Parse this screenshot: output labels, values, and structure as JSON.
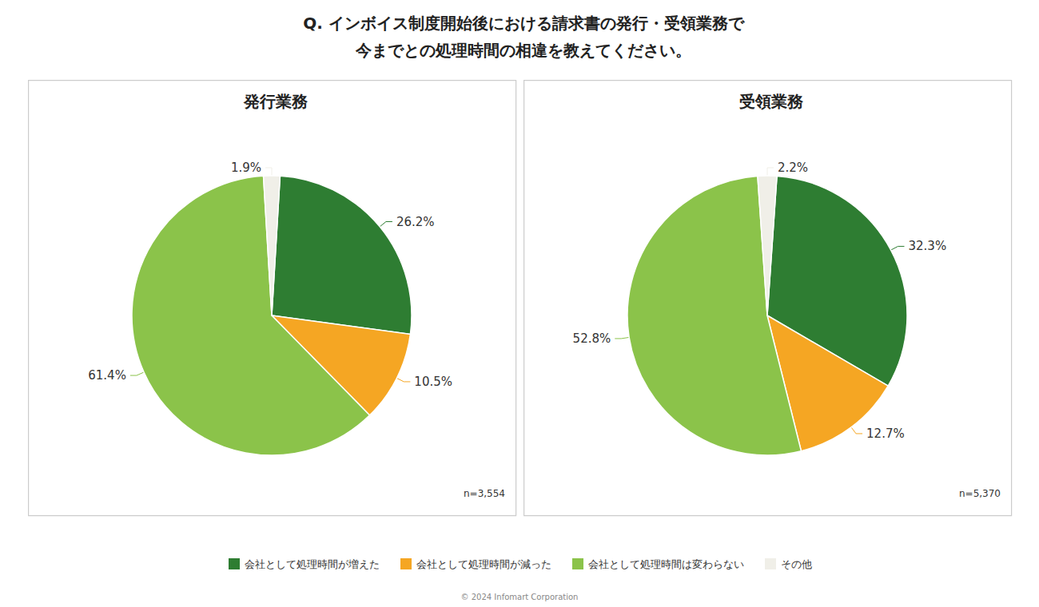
{
  "title": "Q. インボイス制度開始後における請求書の発行・受領業務で",
  "subtitle": "今までとの処理時間の相違を教えてください。",
  "annotations": [
    "© 2024 Infomart Corporation"
  ],
  "chart_data": [
    {
      "type": "pie",
      "title": "発行業務",
      "categories": [
        "会社として処理時間が増えた",
        "会社として処理時間が減った",
        "会社として処理時間は変わらない",
        "その他"
      ],
      "values": [
        26.2,
        10.5,
        61.4,
        1.9
      ],
      "value_labels": [
        "26.2%",
        "10.5%",
        "61.4%",
        "1.9%"
      ],
      "colors": [
        "#2e7d32",
        "#f5a623",
        "#8bc34a",
        "#f0efe8"
      ],
      "data_labels": true,
      "legend": "bottom",
      "annotations": [
        "n=3,554"
      ]
    },
    {
      "type": "pie",
      "title": "受領業務",
      "categories": [
        "会社として処理時間が増えた",
        "会社として処理時間が減った",
        "会社として処理時間は変わらない",
        "その他"
      ],
      "values": [
        32.3,
        12.7,
        52.8,
        2.2
      ],
      "value_labels": [
        "32.3%",
        "12.7%",
        "52.8%",
        "2.2%"
      ],
      "colors": [
        "#2e7d32",
        "#f5a623",
        "#8bc34a",
        "#f0efe8"
      ],
      "data_labels": true,
      "legend": "bottom",
      "annotations": [
        "n=5,370"
      ]
    }
  ]
}
